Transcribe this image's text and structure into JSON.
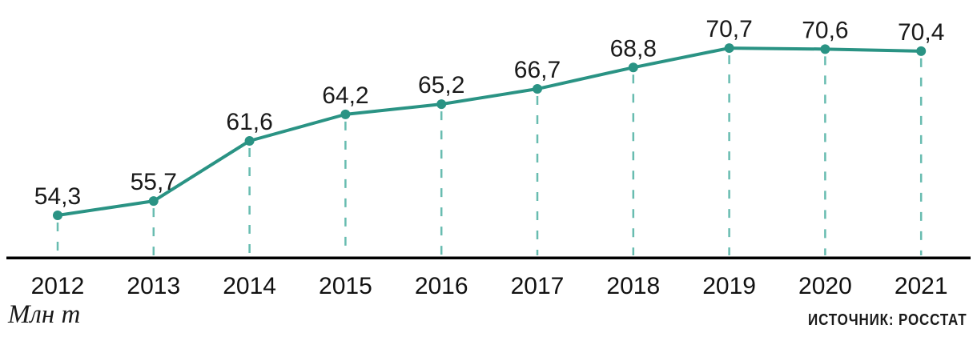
{
  "chart_data": {
    "type": "line",
    "categories": [
      "2012",
      "2013",
      "2014",
      "2015",
      "2016",
      "2017",
      "2018",
      "2019",
      "2020",
      "2021"
    ],
    "values": [
      54.3,
      55.7,
      61.6,
      64.2,
      65.2,
      66.7,
      68.8,
      70.7,
      70.6,
      70.4
    ],
    "value_labels": [
      "54,3",
      "55,7",
      "61,6",
      "64,2",
      "65,2",
      "66,7",
      "68,8",
      "70,7",
      "70,6",
      "70,4"
    ],
    "title": "",
    "xlabel": "",
    "ylabel": "Млн т",
    "source": "ИСТОЧНИК: РОССТАТ",
    "ylim": [
      52,
      74
    ],
    "grid": "dashed vertical droplines from each point to x-axis",
    "legend_position": "none",
    "colors": {
      "line": "#2a9384",
      "marker": "#2a9384",
      "dropline": "#68bcb0",
      "axis": "#000000",
      "text": "#1a1a1a"
    }
  }
}
